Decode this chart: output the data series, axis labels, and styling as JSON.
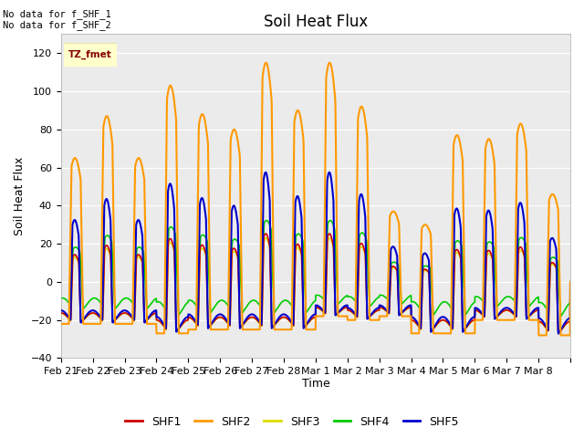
{
  "title": "Soil Heat Flux",
  "ylabel": "Soil Heat Flux",
  "xlabel": "Time",
  "ylim": [
    -40,
    130
  ],
  "yticks": [
    -40,
    -20,
    0,
    20,
    40,
    60,
    80,
    100,
    120
  ],
  "colors": {
    "SHF1": "#cc0000",
    "SHF2": "#ff9900",
    "SHF3": "#dddd00",
    "SHF4": "#00cc00",
    "SHF5": "#0000cc"
  },
  "annotation_text": "No data for f_SHF_1\nNo data for f_SHF_2",
  "tz_label": "TZ_fmet",
  "background_color": "#ebebeb",
  "grid_color": "#ffffff",
  "x_tick_labels": [
    "Feb 21",
    "Feb 22",
    "Feb 23",
    "Feb 24",
    "Feb 25",
    "Feb 26",
    "Feb 27",
    "Feb 28",
    "Mar 1",
    "Mar 2",
    "Mar 3",
    "Mar 4",
    "Mar 5",
    "Mar 6",
    "Mar 7",
    "Mar 8"
  ],
  "n_days": 16,
  "shf2_peaks": [
    65,
    87,
    65,
    103,
    88,
    80,
    115,
    90,
    115,
    92,
    37,
    30,
    77,
    75,
    83,
    46
  ],
  "shf2_night": [
    -22,
    -22,
    -22,
    -27,
    -25,
    -25,
    -25,
    -25,
    -18,
    -20,
    -18,
    -27,
    -27,
    -20,
    -20,
    -28
  ],
  "shf5_scale": 0.5,
  "shf1_scale": 0.22,
  "shf3_scale": 0.2,
  "shf4_scale": 0.28
}
